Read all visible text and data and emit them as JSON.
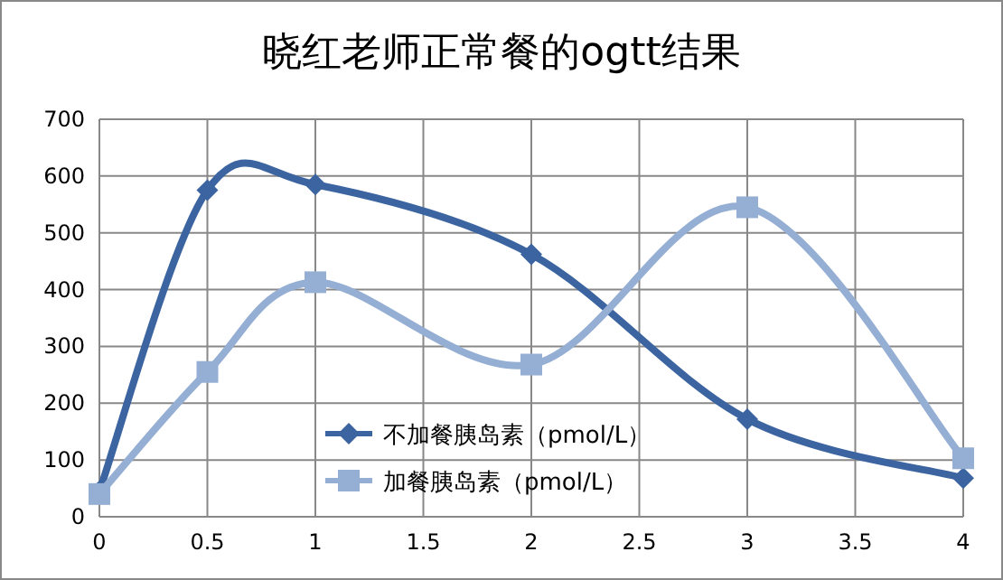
{
  "chart_data": {
    "type": "line",
    "title": "晓红老师正常餐的ogtt结果",
    "x": [
      0,
      0.5,
      1,
      2,
      3,
      4
    ],
    "series": [
      {
        "name": "不加餐胰岛素（pmol/L）",
        "color": "#3b64a0",
        "marker": "diamond",
        "values": [
          45,
          575,
          585,
          462,
          172,
          68
        ]
      },
      {
        "name": "加餐胰岛素（pmol/L）",
        "color": "#95aed3",
        "marker": "square",
        "values": [
          40,
          255,
          413,
          268,
          545,
          103
        ]
      }
    ],
    "xlim": [
      0,
      4
    ],
    "xticks": [
      0,
      0.5,
      1,
      1.5,
      2,
      2.5,
      3,
      3.5,
      4
    ],
    "ylim": [
      0,
      700
    ],
    "yticks": [
      0,
      100,
      200,
      300,
      400,
      500,
      600,
      700
    ],
    "grid": true,
    "legend": "bottom left"
  }
}
